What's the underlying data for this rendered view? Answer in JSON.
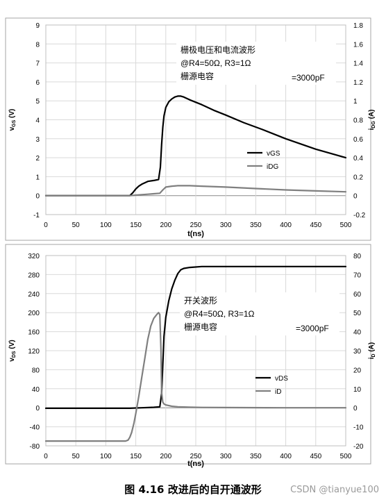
{
  "chart_data": [
    {
      "type": "line",
      "xlabel": "t(ns)",
      "ylabel": "vGS (V)",
      "ylabel_right": "iDG (A)",
      "xlim": [
        0,
        500
      ],
      "ylim": [
        -1,
        9
      ],
      "ylim_right": [
        -0.2,
        1.8
      ],
      "xticks": [
        "0",
        "50",
        "100",
        "150",
        "200",
        "250",
        "300",
        "350",
        "400",
        "450",
        "500"
      ],
      "yticks": [
        "-1",
        "0",
        "1",
        "2",
        "3",
        "4",
        "5",
        "6",
        "7",
        "8",
        "9"
      ],
      "yticks_right": [
        "-0.2",
        "0",
        "0.2",
        "0.4",
        "0.6",
        "0.8",
        "1",
        "1.2",
        "1.4",
        "1.6",
        "1.8"
      ],
      "grid": true,
      "legend_position": "right",
      "annotation": [
        "栅极电压和电流波形",
        "@R4=50Ω, R3=1Ω",
        "栅源电容",
        "=3000pF"
      ],
      "series": [
        {
          "name": "vGS",
          "axis": "left",
          "color": "#000000",
          "x": [
            0,
            140,
            145,
            150,
            155,
            160,
            170,
            180,
            188,
            191,
            193,
            195,
            197,
            200,
            205,
            210,
            215,
            220,
            225,
            230,
            240,
            260,
            280,
            300,
            330,
            360,
            400,
            450,
            500
          ],
          "y": [
            0,
            0,
            0.15,
            0.35,
            0.5,
            0.6,
            0.75,
            0.8,
            0.85,
            1.5,
            2.7,
            3.6,
            4.2,
            4.65,
            4.95,
            5.1,
            5.2,
            5.25,
            5.25,
            5.2,
            5.05,
            4.8,
            4.5,
            4.25,
            3.85,
            3.5,
            3.0,
            2.45,
            2.0
          ]
        },
        {
          "name": "iDG",
          "axis": "right",
          "color": "#7f7f7f",
          "x": [
            0,
            140,
            150,
            160,
            170,
            180,
            190,
            195,
            200,
            210,
            220,
            240,
            260,
            300,
            350,
            400,
            450,
            500
          ],
          "y": [
            0,
            0,
            0.005,
            0.01,
            0.015,
            0.02,
            0.025,
            0.06,
            0.09,
            0.1,
            0.105,
            0.105,
            0.1,
            0.09,
            0.075,
            0.06,
            0.05,
            0.04
          ]
        }
      ]
    },
    {
      "type": "line",
      "xlabel": "t(ns)",
      "ylabel": "vDS (V)",
      "ylabel_right": "iD (A)",
      "xlim": [
        0,
        500
      ],
      "ylim": [
        -80,
        320
      ],
      "ylim_right": [
        -20,
        80
      ],
      "xticks": [
        "0",
        "50",
        "100",
        "150",
        "200",
        "250",
        "300",
        "350",
        "400",
        "450",
        "500"
      ],
      "yticks": [
        "-80",
        "-40",
        "0",
        "40",
        "80",
        "120",
        "160",
        "200",
        "240",
        "280",
        "320"
      ],
      "yticks_right": [
        "-20",
        "-10",
        "0",
        "10",
        "20",
        "30",
        "40",
        "50",
        "60",
        "70",
        "80"
      ],
      "grid": true,
      "legend_position": "right",
      "annotation": [
        "开关波形",
        "@R4=50Ω, R3=1Ω",
        "栅源电容",
        "=3000pF"
      ],
      "series": [
        {
          "name": "vDS",
          "axis": "left",
          "color": "#000000",
          "x": [
            0,
            100,
            140,
            150,
            160,
            170,
            180,
            190,
            193,
            195,
            197,
            200,
            205,
            210,
            215,
            220,
            225,
            230,
            240,
            260,
            300,
            350,
            400,
            450,
            500
          ],
          "y": [
            -1,
            -1,
            -1,
            -0.5,
            0,
            0.5,
            1,
            2,
            30,
            90,
            150,
            190,
            225,
            250,
            268,
            282,
            290,
            293,
            295,
            297,
            297,
            297,
            297,
            297,
            297
          ],
          "unit_note": "left axis"
        },
        {
          "name": "iD",
          "axis": "right",
          "color": "#7f7f7f",
          "x": [
            0,
            120,
            133,
            137,
            140,
            143,
            147,
            150,
            155,
            160,
            165,
            170,
            175,
            180,
            185,
            188,
            190,
            192,
            193,
            195,
            197,
            200,
            210,
            220,
            240,
            260,
            300,
            400,
            500
          ],
          "y": [
            -17.5,
            -17.5,
            -17.5,
            -17,
            -15.5,
            -13,
            -8,
            -3,
            6,
            16,
            26,
            36,
            43,
            47,
            49,
            50,
            49,
            30,
            8,
            3,
            2,
            1.5,
            0.8,
            0.5,
            0.3,
            0.2,
            0.1,
            0,
            0
          ]
        }
      ]
    }
  ],
  "caption": "图 4.16  改进后的自开通波形",
  "watermark": "CSDN @tianyue100"
}
